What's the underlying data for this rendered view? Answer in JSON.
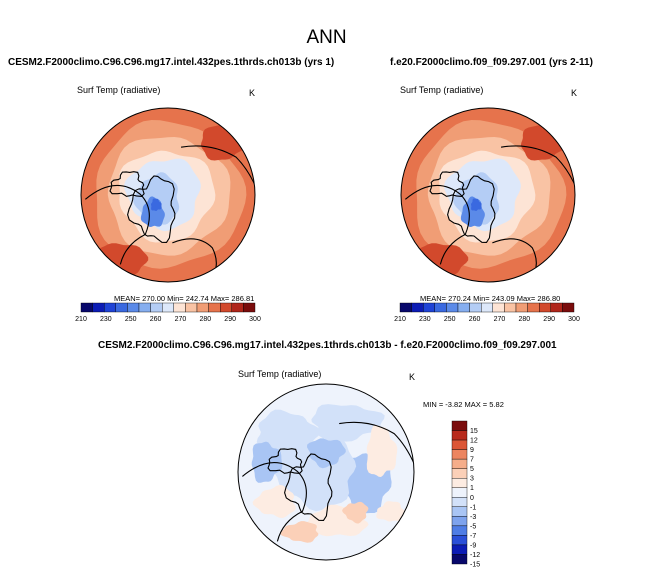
{
  "title": "ANN",
  "panels": [
    {
      "case": "CESM2.F2000climo.C96.C96.mg17.intel.432pes.1thrds.ch013b (yrs 1)",
      "variable": "Surf Temp (radiative)",
      "units": "K",
      "stats": "MEAN= 270.00  Min= 242.74  Max= 286.81"
    },
    {
      "case": "f.e20.F2000climo.f09_f09.297.001 (yrs 2-11)",
      "variable": "Surf Temp (radiative)",
      "units": "K",
      "stats": "MEAN= 270.24  Min= 243.09  Max= 286.80"
    },
    {
      "case": "CESM2.F2000climo.C96.C96.mg17.intel.432pes.1thrds.ch013b - f.e20.F2000climo.f09_f09.297.001",
      "variable": "Surf Temp (radiative)",
      "units": "K",
      "stats": "MIN = -3.82 MAX =  5.82"
    }
  ],
  "chart_data": [
    {
      "type": "heatmap",
      "title": "CESM2.F2000climo.C96.C96.mg17.intel.432pes.1thrds.ch013b (yrs 1)",
      "subtitle": "Surf Temp (radiative)",
      "units": "K",
      "projection": "north polar stereographic",
      "summary": {
        "mean": 270.0,
        "min": 242.74,
        "max": 286.81
      },
      "colorbar": {
        "orientation": "horizontal",
        "levels": [
          210,
          220,
          230,
          240,
          250,
          260,
          265,
          270,
          275,
          280,
          285,
          290,
          295,
          300
        ],
        "tick_labels": [
          "210",
          "230",
          "250",
          "260",
          "270",
          "280",
          "290",
          "300"
        ],
        "colors": [
          "#08086b",
          "#0c1cb5",
          "#1f43d6",
          "#3a69e0",
          "#5b8ae8",
          "#86aeef",
          "#b4cdf5",
          "#dde8fa",
          "#fde4d5",
          "#f9c3a4",
          "#f09d75",
          "#e6734c",
          "#d2492c",
          "#b0251a",
          "#7a0c0c"
        ]
      }
    },
    {
      "type": "heatmap",
      "title": "f.e20.F2000climo.f09_f09.297.001 (yrs 2-11)",
      "subtitle": "Surf Temp (radiative)",
      "units": "K",
      "projection": "north polar stereographic",
      "summary": {
        "mean": 270.24,
        "min": 243.09,
        "max": 286.8
      },
      "colorbar": {
        "orientation": "horizontal",
        "levels": [
          210,
          220,
          230,
          240,
          250,
          260,
          265,
          270,
          275,
          280,
          285,
          290,
          295,
          300
        ],
        "tick_labels": [
          "210",
          "230",
          "250",
          "260",
          "270",
          "280",
          "290",
          "300"
        ],
        "colors": [
          "#08086b",
          "#0c1cb5",
          "#1f43d6",
          "#3a69e0",
          "#5b8ae8",
          "#86aeef",
          "#b4cdf5",
          "#dde8fa",
          "#fde4d5",
          "#f9c3a4",
          "#f09d75",
          "#e6734c",
          "#d2492c",
          "#b0251a",
          "#7a0c0c"
        ]
      }
    },
    {
      "type": "heatmap",
      "title": "CESM2.F2000climo.C96.C96.mg17.intel.432pes.1thrds.ch013b - f.e20.F2000climo.f09_f09.297.001",
      "subtitle": "Surf Temp (radiative)",
      "units": "K",
      "projection": "north polar stereographic",
      "summary": {
        "min": -3.82,
        "max": 5.82
      },
      "colorbar": {
        "orientation": "vertical",
        "levels": [
          -15,
          -12,
          -9,
          -7,
          -5,
          -3,
          -1,
          0,
          1,
          3,
          5,
          7,
          9,
          12,
          15
        ],
        "tick_labels": [
          "15",
          "12",
          "9",
          "7",
          "5",
          "3",
          "1",
          "0",
          "-1",
          "-3",
          "-5",
          "-7",
          "-9",
          "-12",
          "-15"
        ],
        "colors": [
          "#08086b",
          "#0c1cb5",
          "#2a4fd8",
          "#4f7de5",
          "#7ea3ed",
          "#a9c5f4",
          "#d2e1f9",
          "#eef3fc",
          "#fdece2",
          "#fbd0b8",
          "#f5ad8a",
          "#ec8560",
          "#dc5636",
          "#b82a1c",
          "#7a0c0c"
        ]
      }
    }
  ]
}
